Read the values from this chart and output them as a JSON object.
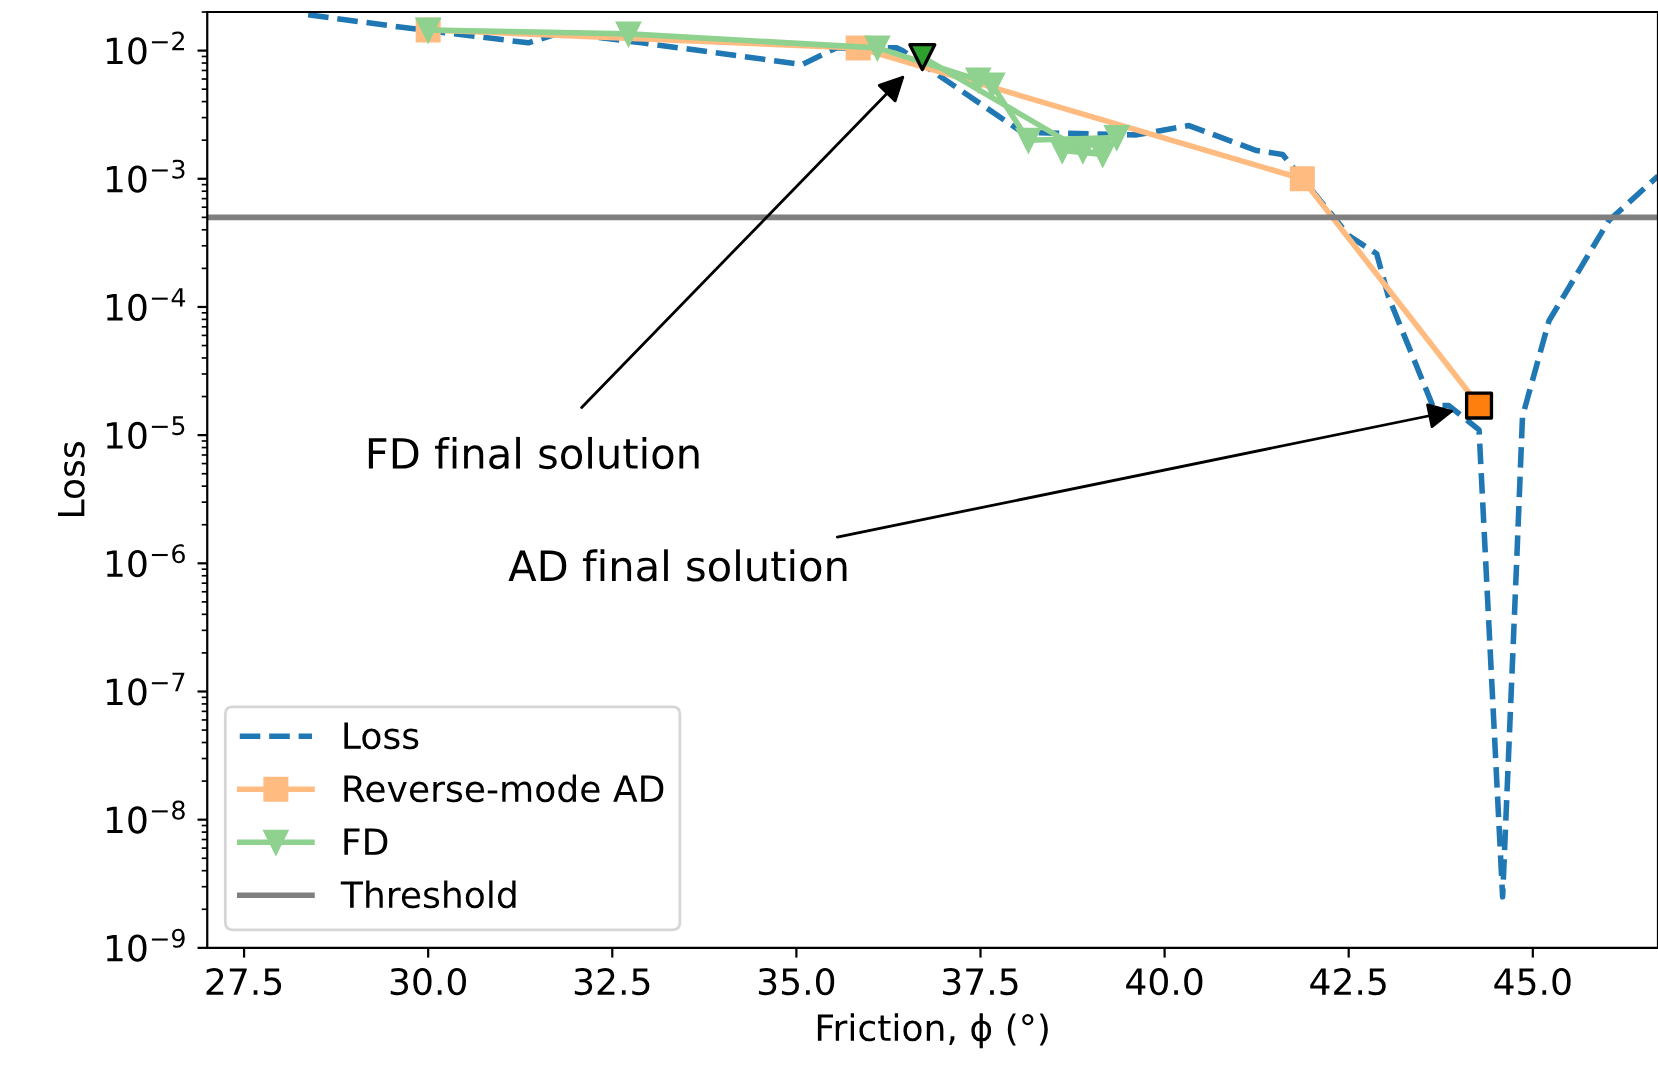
{
  "chart_data": {
    "type": "line",
    "xlabel": "Friction, ϕ (°)",
    "ylabel": "Loss",
    "log": "y",
    "xlim": [
      27.0,
      46.7
    ],
    "ylim": [
      1e-09,
      0.02
    ],
    "xticks": [
      27.5,
      {
        "value": 30,
        "label": "30.0"
      },
      32.5,
      {
        "value": 35,
        "label": "35.0"
      },
      37.5,
      {
        "value": 40,
        "label": "40.0"
      },
      42.5,
      {
        "value": 45,
        "label": "45.0"
      }
    ],
    "yticks": [
      {
        "value": 1e-09,
        "label": "10$^{−9}$"
      },
      {
        "value": 1e-08,
        "label": "10$^{−8}$"
      },
      {
        "value": 1e-07,
        "label": "10$^{−7}$"
      },
      {
        "value": 1e-06,
        "label": "10$^{−6}$"
      },
      {
        "value": 1e-05,
        "label": "10$^{−5}$"
      },
      {
        "value": 0.0001,
        "label": "10$^{−4}$"
      },
      {
        "value": 0.001,
        "label": "10$^{−3}$"
      },
      {
        "value": 0.01,
        "label": "10$^{−2}$"
      }
    ],
    "legend": "bottom left",
    "grid": false,
    "series": [
      {
        "name": "Loss",
        "line_style": "dashed",
        "marker": "none",
        "color": "#1f77b4",
        "x": [
          28.37,
          29.92,
          31.36,
          31.8,
          32.9,
          35.08,
          35.54,
          36.36,
          36.44,
          38.07,
          39.62,
          40.33,
          41.25,
          41.6,
          41.96,
          42.5,
          42.88,
          43.04,
          43.64,
          43.86,
          44.27,
          44.59,
          44.78,
          44.86,
          45.22,
          46.03,
          46.7
        ],
        "values": [
          0.019,
          0.0145,
          0.0115,
          0.0138,
          0.0115,
          0.0078,
          0.0105,
          0.0105,
          0.01,
          0.0023,
          0.0022,
          0.0026,
          0.00166,
          0.00155,
          0.00087,
          0.00036,
          0.00026,
          0.00012,
          1.7e-05,
          1.7e-05,
          1.1e-05,
          2.5e-09,
          1e-06,
          1.4e-05,
          7.8e-05,
          0.00047,
          0.00105
        ]
      },
      {
        "name": "Reverse-mode AD",
        "line_style": "solid",
        "marker": "square",
        "color": "#ffbb80",
        "x": [
          30.0,
          35.84,
          41.87,
          44.27
        ],
        "values": [
          0.0145,
          0.0105,
          0.001,
          1.7e-05
        ]
      },
      {
        "name": "FD",
        "line_style": "solid",
        "marker": "triangle",
        "color": "#8fd18f",
        "x": [
          30.0,
          32.72,
          36.1,
          37.47,
          37.66,
          38.15,
          39.35,
          38.61,
          39.16,
          38.89,
          36.71
        ],
        "values": [
          0.0145,
          0.0135,
          0.0105,
          0.0059,
          0.0054,
          0.002,
          0.0021,
          0.00166,
          0.00155,
          0.00166,
          0.0089
        ]
      },
      {
        "type": "scatter",
        "marker": "triangle",
        "color": "#2ca02c",
        "x": [
          36.71
        ],
        "values": [
          0.0089
        ]
      },
      {
        "type": "scatter",
        "marker": "square",
        "color": "#ff7f0e",
        "x": [
          44.27
        ],
        "values": [
          1.7e-05
        ]
      }
    ],
    "ref_lines": [
      {
        "axis": "y",
        "value": 0.0005,
        "label": "Threshold",
        "color": "#7f7f7f",
        "line_style": "solid"
      }
    ],
    "annotations": [
      "FD final solution",
      "AD final solution"
    ]
  }
}
